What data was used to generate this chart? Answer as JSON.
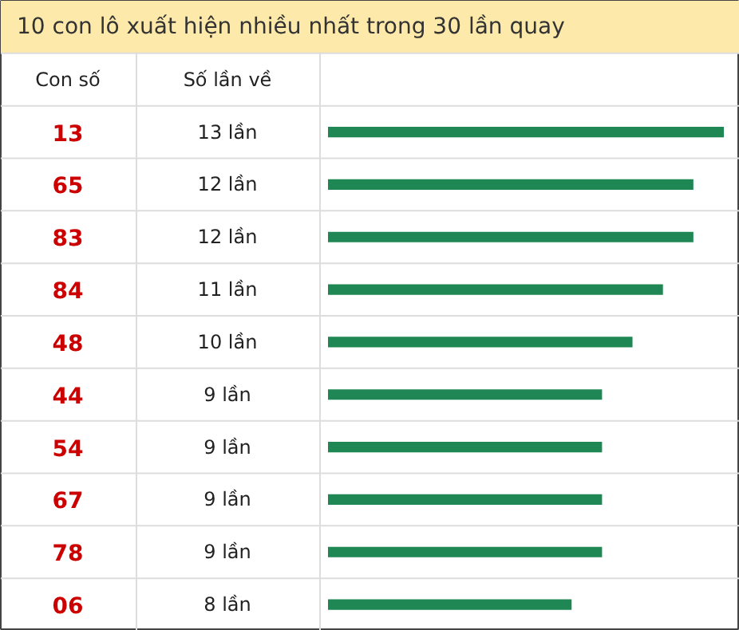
{
  "chart_data": {
    "type": "bar",
    "orientation": "horizontal",
    "title": "10 con lô xuất hiện nhiều nhất trong 30 lần quay",
    "annotations": [
      "Con số",
      "Số lần về"
    ],
    "categories": [
      "13",
      "65",
      "83",
      "84",
      "48",
      "44",
      "54",
      "67",
      "78",
      "06"
    ],
    "values": [
      13,
      12,
      12,
      11,
      10,
      9,
      9,
      9,
      9,
      8
    ],
    "value_labels": [
      "13 lần",
      "12 lần",
      "12 lần",
      "11 lần",
      "10 lần",
      "9 lần",
      "9 lần",
      "9 lần",
      "9 lần",
      "8 lần"
    ],
    "color": "#1e8753"
  }
}
